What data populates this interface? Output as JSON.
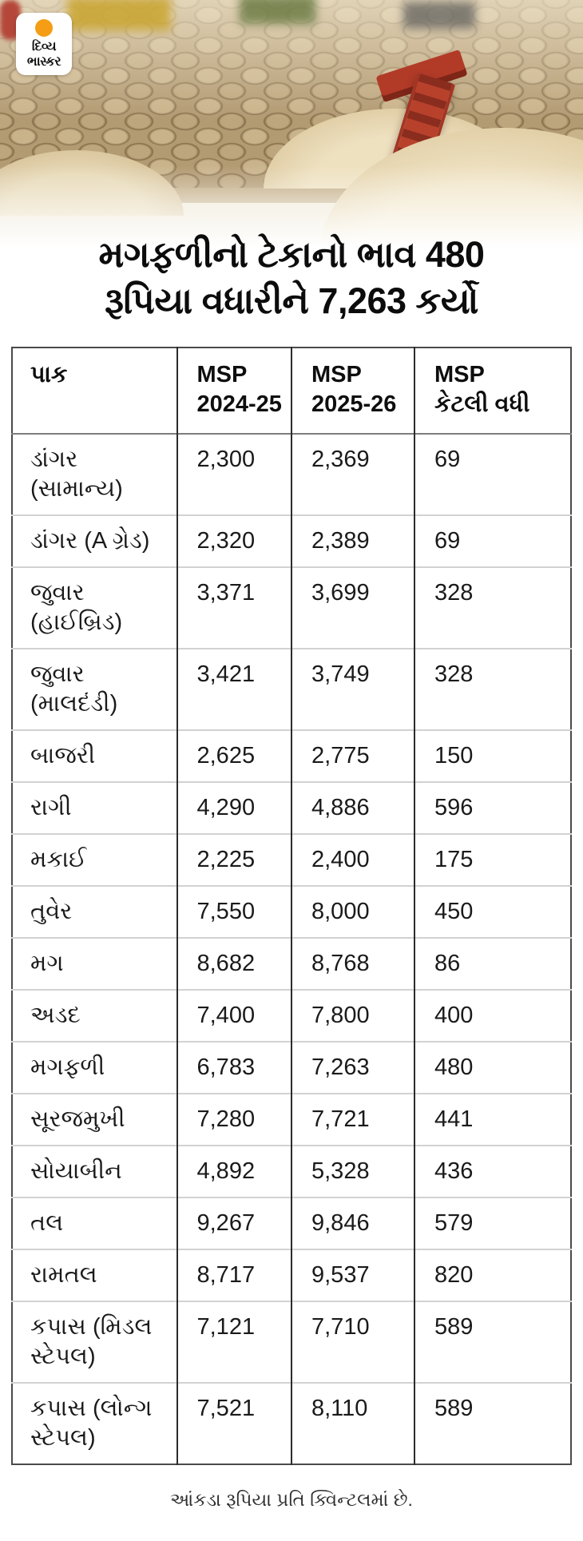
{
  "brand": {
    "name_line1": "દિવ્ય",
    "name_line2": "ભાસ્કર",
    "dot_color": "#F49D15"
  },
  "headline": {
    "line1": "મગફળીનો ટેકાનો ભાવ 480",
    "line2": "રૂપિયા વધારીને 7,263 કર્યો"
  },
  "table": {
    "headers": [
      "પાક",
      "MSP\n2024-25",
      "MSP\n2025-26",
      "MSP\nકેટલી વધી"
    ],
    "rows": [
      {
        "crop": "ડાંગર (સામાન્ય)",
        "msp_2024_25": "2,300",
        "msp_2025_26": "2,369",
        "increase": "69"
      },
      {
        "crop": "ડાંગર (A ગ્રેડ)",
        "msp_2024_25": "2,320",
        "msp_2025_26": "2,389",
        "increase": "69"
      },
      {
        "crop": "જુવાર (હાઈબ્રિડ)",
        "msp_2024_25": "3,371",
        "msp_2025_26": "3,699",
        "increase": "328"
      },
      {
        "crop": "જુવાર (માલદંડી)",
        "msp_2024_25": "3,421",
        "msp_2025_26": "3,749",
        "increase": "328"
      },
      {
        "crop": "બાજરી",
        "msp_2024_25": "2,625",
        "msp_2025_26": "2,775",
        "increase": "150"
      },
      {
        "crop": "રાગી",
        "msp_2024_25": "4,290",
        "msp_2025_26": "4,886",
        "increase": "596"
      },
      {
        "crop": "મકાઈ",
        "msp_2024_25": "2,225",
        "msp_2025_26": "2,400",
        "increase": "175"
      },
      {
        "crop": "તુવેર",
        "msp_2024_25": "7,550",
        "msp_2025_26": "8,000",
        "increase": "450"
      },
      {
        "crop": "મગ",
        "msp_2024_25": "8,682",
        "msp_2025_26": "8,768",
        "increase": "86"
      },
      {
        "crop": "અડદ",
        "msp_2024_25": "7,400",
        "msp_2025_26": "7,800",
        "increase": "400"
      },
      {
        "crop": "મગફળી",
        "msp_2024_25": "6,783",
        "msp_2025_26": "7,263",
        "increase": "480"
      },
      {
        "crop": "સૂરજમુખી",
        "msp_2024_25": "7,280",
        "msp_2025_26": "7,721",
        "increase": "441"
      },
      {
        "crop": "સોયાબીન",
        "msp_2024_25": "4,892",
        "msp_2025_26": "5,328",
        "increase": "436"
      },
      {
        "crop": "તલ",
        "msp_2024_25": "9,267",
        "msp_2025_26": "9,846",
        "increase": "579"
      },
      {
        "crop": "રામતલ",
        "msp_2024_25": "8,717",
        "msp_2025_26": "9,537",
        "increase": "820"
      },
      {
        "crop": "કપાસ (મિડલ સ્ટેપલ)",
        "msp_2024_25": "7,121",
        "msp_2025_26": "7,710",
        "increase": "589"
      },
      {
        "crop": "કપાસ (લોન્ગ સ્ટેપલ)",
        "msp_2024_25": "7,521",
        "msp_2025_26": "8,110",
        "increase": "589"
      }
    ]
  },
  "footer_note": "આંકડા રૂપિયા પ્રતિ ક્વિન્ટલમાં છે.",
  "colors": {
    "accent_orange": "#F49D15",
    "table_outer_border": "#4a4a4a",
    "column_divider": "#2b2b2b",
    "row_divider": "#d2d2d2",
    "header_divider": "#7d7d7d"
  },
  "chart_data": {
    "type": "table",
    "title": "મગફળીનો ટેકાનો ભાવ 480 રૂપિયા વધારીને 7,263 કર્યો",
    "columns": [
      "પાક",
      "MSP 2024-25",
      "MSP 2025-26",
      "MSP કેટલી વધી"
    ],
    "rows": [
      [
        "ડાંગર (સામાન્ય)",
        2300,
        2369,
        69
      ],
      [
        "ડાંગર (A ગ્રેડ)",
        2320,
        2389,
        69
      ],
      [
        "જુવાર (હાઈબ્રિડ)",
        3371,
        3699,
        328
      ],
      [
        "જુવાર (માલદંડી)",
        3421,
        3749,
        328
      ],
      [
        "બાજરી",
        2625,
        2775,
        150
      ],
      [
        "રાગી",
        4290,
        4886,
        596
      ],
      [
        "મકાઈ",
        2225,
        2400,
        175
      ],
      [
        "તુવેર",
        7550,
        8000,
        450
      ],
      [
        "મગ",
        8682,
        8768,
        86
      ],
      [
        "અડદ",
        7400,
        7800,
        400
      ],
      [
        "મગફળી",
        6783,
        7263,
        480
      ],
      [
        "સૂરજમુખી",
        7280,
        7721,
        441
      ],
      [
        "સોયાબીન",
        4892,
        5328,
        436
      ],
      [
        "તલ",
        9267,
        9846,
        579
      ],
      [
        "રામતલ",
        8717,
        9537,
        820
      ],
      [
        "કપાસ (મિડલ સ્ટેપલ)",
        7121,
        7710,
        589
      ],
      [
        "કપાસ (લોન્ગ સ્ટેપલ)",
        7521,
        8110,
        589
      ]
    ],
    "note": "આંકડા રૂપિયા પ્રતિ ક્વિન્ટલમાં છે.",
    "units": "rupees per quintal"
  }
}
